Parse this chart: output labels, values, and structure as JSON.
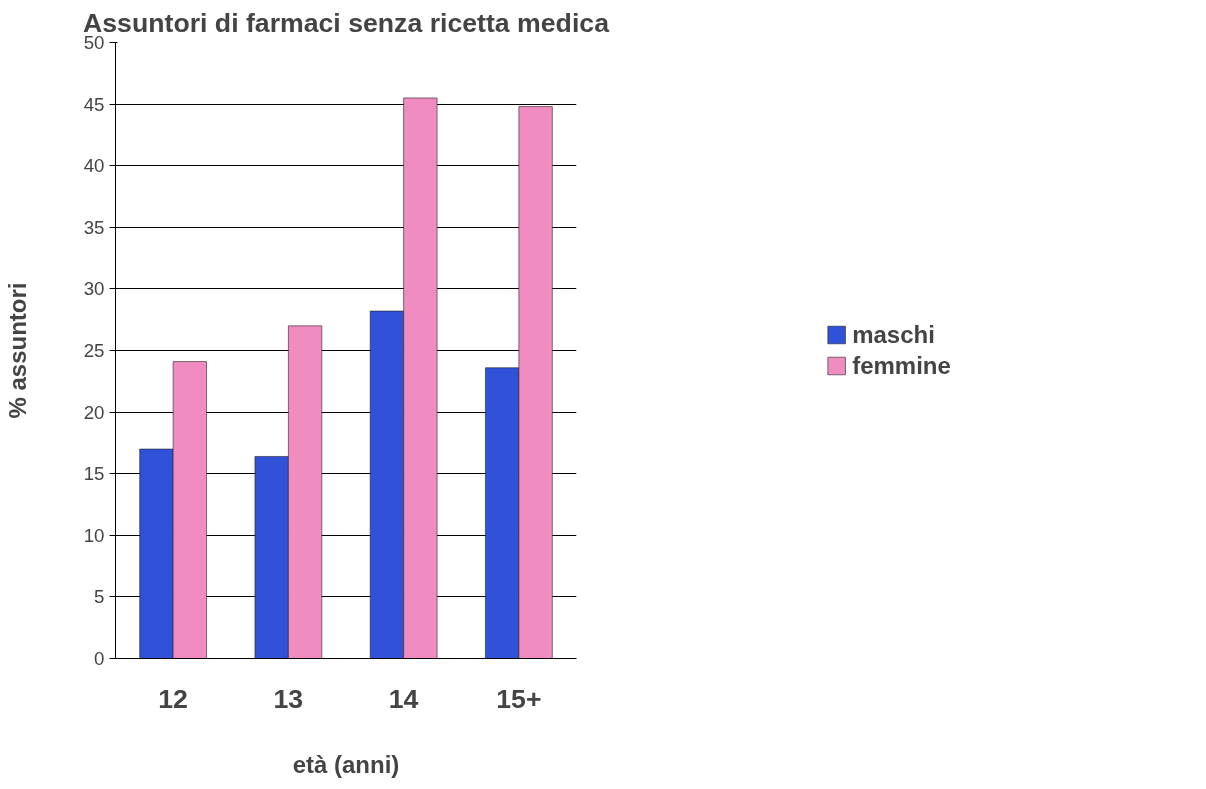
{
  "chart_data": {
    "type": "bar",
    "title": "Assuntori di farmaci senza ricetta medica",
    "xlabel": "età (anni)",
    "ylabel": "% assuntori",
    "categories": [
      "12",
      "13",
      "14",
      "15+"
    ],
    "series": [
      {
        "name": "maschi",
        "color": "#2f52d8",
        "values": [
          17.0,
          16.4,
          28.2,
          23.6
        ]
      },
      {
        "name": "femmine",
        "color": "#f08cc0",
        "values": [
          24.1,
          27.0,
          45.5,
          44.8
        ]
      }
    ],
    "ylim": [
      0,
      50
    ],
    "yticks": [
      0,
      5,
      10,
      15,
      20,
      25,
      30,
      35,
      40,
      45,
      50
    ],
    "grid": "y",
    "legend": "right"
  }
}
